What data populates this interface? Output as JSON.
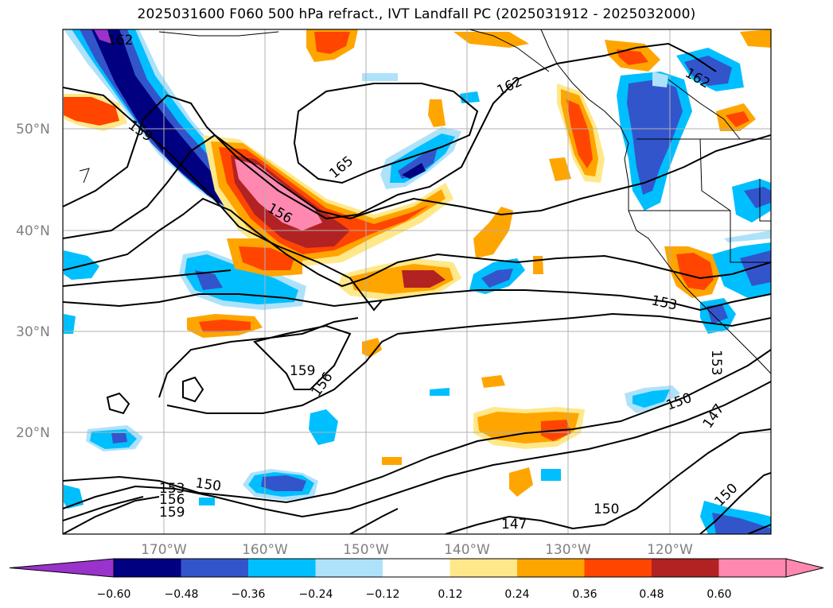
{
  "title": "2025031600 F060 500 hPa refract., IVT Landfall PC (2025031912 - 2025032000)",
  "map": {
    "lat_labels": [
      "50°N",
      "40°N",
      "30°N",
      "20°N"
    ],
    "lon_labels": [
      "170°W",
      "160°W",
      "150°W",
      "140°W",
      "130°W",
      "120°W"
    ],
    "contour_labels": [
      "162",
      "162",
      "165",
      "162",
      "159",
      "156",
      "153",
      "159",
      "156",
      "150",
      "153",
      "147",
      "150",
      "153",
      "156",
      "159",
      "150",
      "147",
      "150"
    ],
    "contour_color": "#000000",
    "grid_color": "#b0b0b0"
  },
  "colorbar": {
    "ticks": [
      "−0.60",
      "−0.48",
      "−0.36",
      "−0.24",
      "−0.12",
      "0.12",
      "0.24",
      "0.36",
      "0.48",
      "0.60"
    ],
    "colors": [
      "#9933cc",
      "#000080",
      "#3355cc",
      "#00bfff",
      "#aee2fa",
      "#ffffff",
      "#ffe88a",
      "#ffa500",
      "#ff4500",
      "#b22222",
      "#ff88b0",
      "#ff88b0"
    ]
  }
}
